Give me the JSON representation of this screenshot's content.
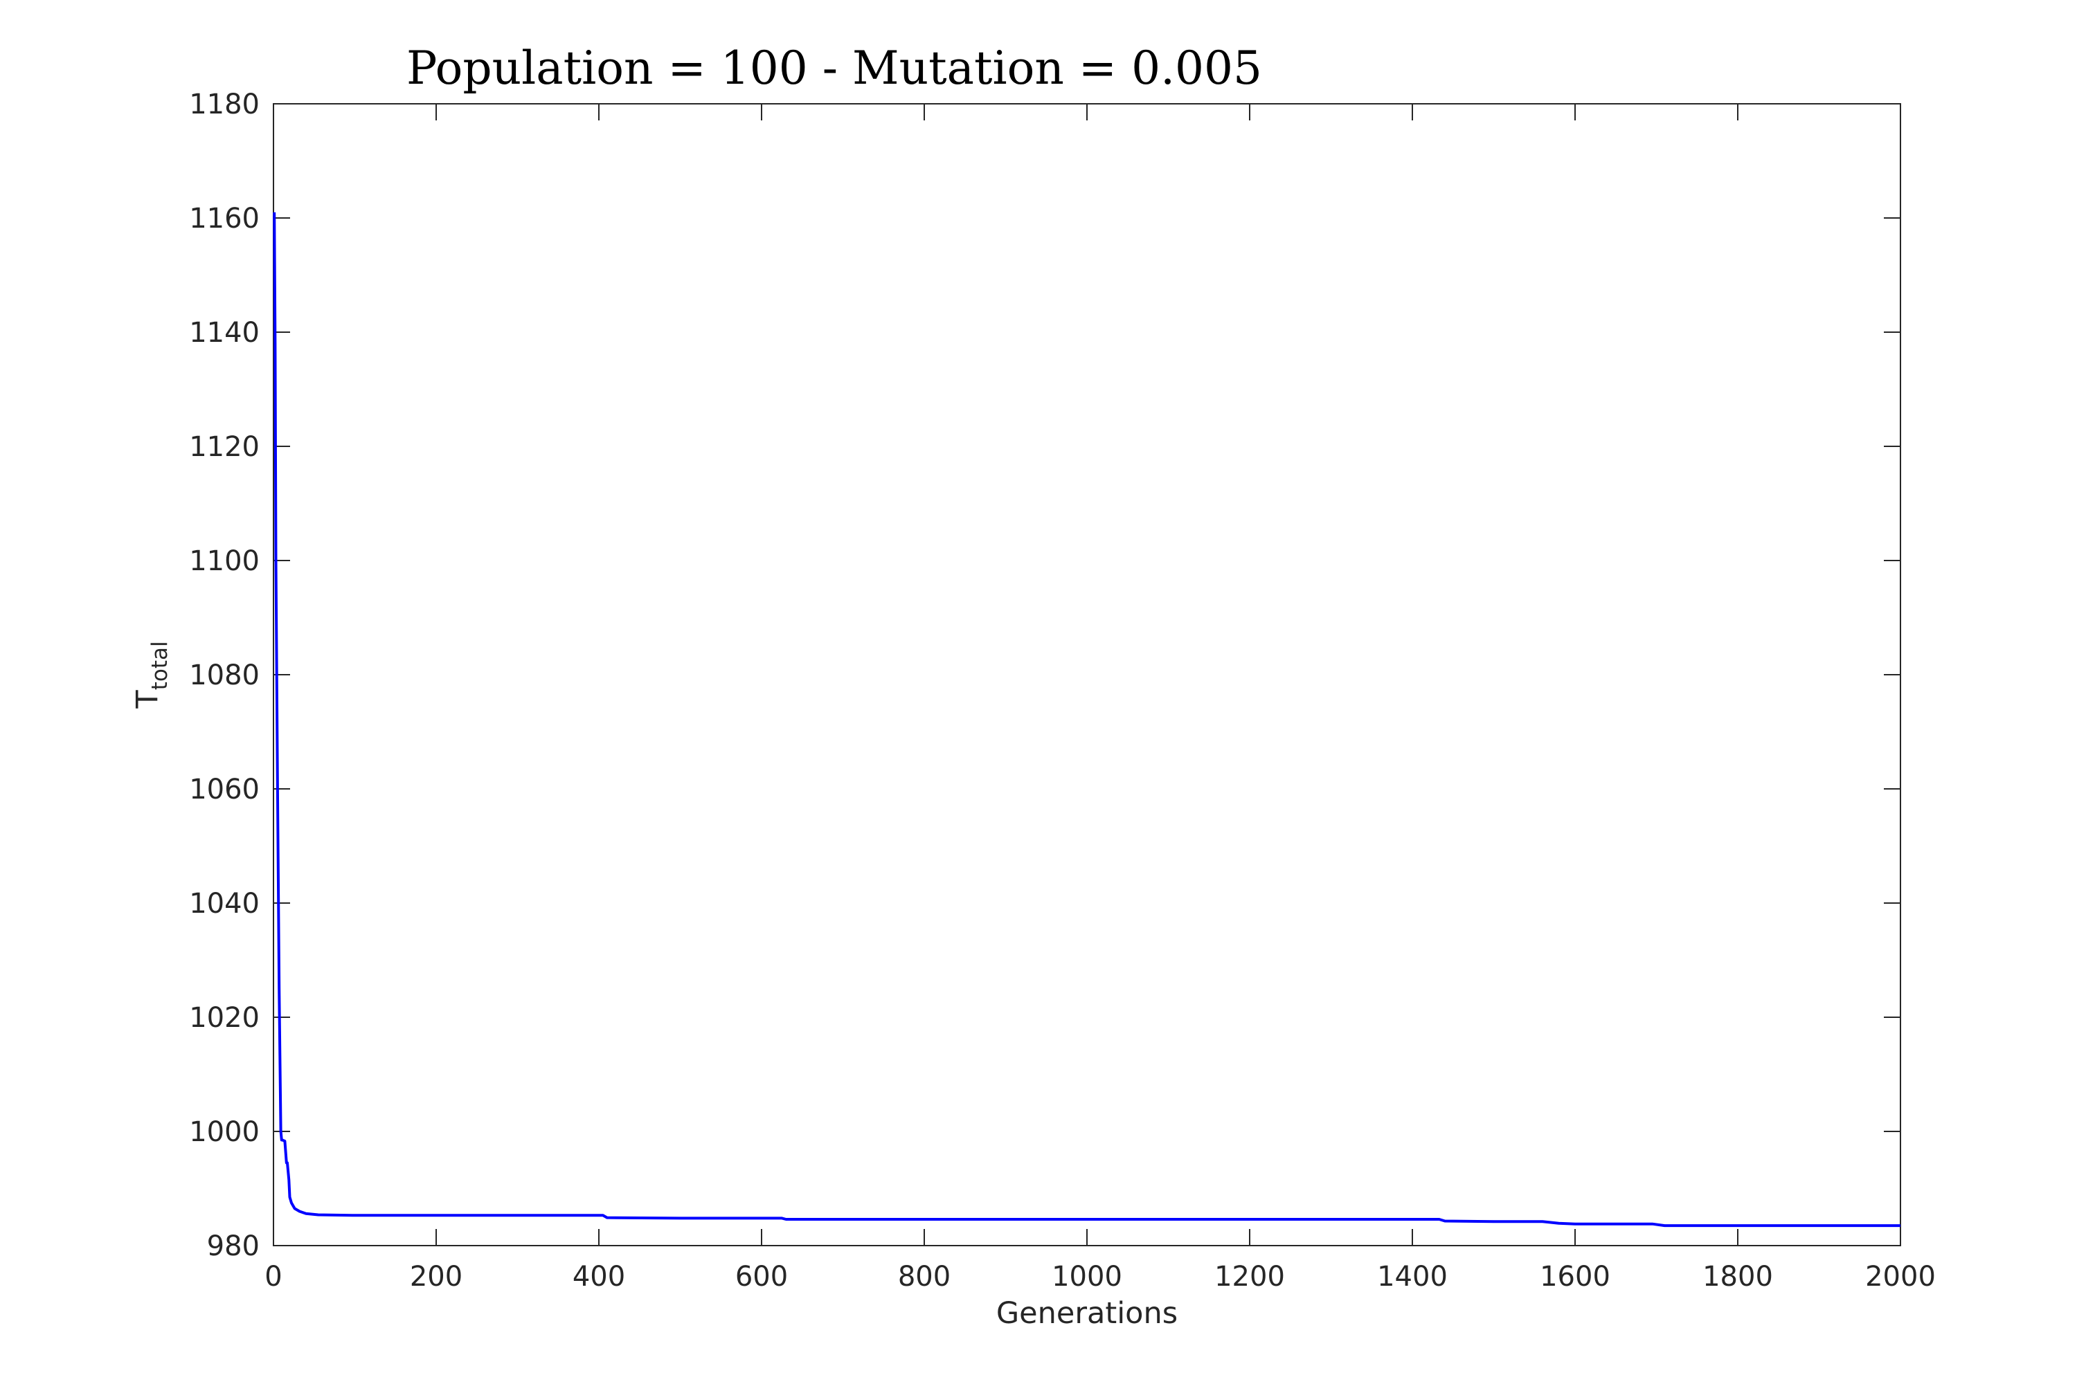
{
  "chart_data": {
    "type": "line",
    "title": "Population = 100 - Mutation = 0.005",
    "xlabel": "Generations",
    "ylabel": {
      "main": "T",
      "subscript": "total"
    },
    "xlim": [
      0,
      2000
    ],
    "ylim": [
      980,
      1180
    ],
    "xticks": [
      0,
      200,
      400,
      600,
      800,
      1000,
      1200,
      1400,
      1600,
      1800,
      2000
    ],
    "yticks": [
      980,
      1000,
      1020,
      1040,
      1060,
      1080,
      1100,
      1120,
      1140,
      1160,
      1180
    ],
    "grid": false,
    "line_color": "#0000ff",
    "series": [
      {
        "x": [
          1,
          2,
          3,
          5,
          7,
          9,
          10,
          11,
          14,
          16,
          17,
          19,
          20,
          22,
          26,
          32,
          40,
          55,
          100,
          200,
          300,
          405,
          410,
          500,
          625,
          630,
          800,
          1000,
          1200,
          1433,
          1440,
          1500,
          1560,
          1580,
          1600,
          1695,
          1710,
          1800,
          1900,
          2000
        ],
        "y": [
          1161,
          1138,
          1100,
          1060,
          1025,
          1000,
          998.5,
          998.5,
          998.3,
          994.5,
          994.5,
          991.5,
          988.5,
          987.5,
          986.5,
          986,
          985.6,
          985.4,
          985.3,
          985.3,
          985.3,
          985.3,
          984.9,
          984.8,
          984.8,
          984.6,
          984.6,
          984.6,
          984.6,
          984.6,
          984.3,
          984.2,
          984.2,
          983.9,
          983.8,
          983.8,
          983.5,
          983.5,
          983.5,
          983.5
        ]
      }
    ]
  }
}
